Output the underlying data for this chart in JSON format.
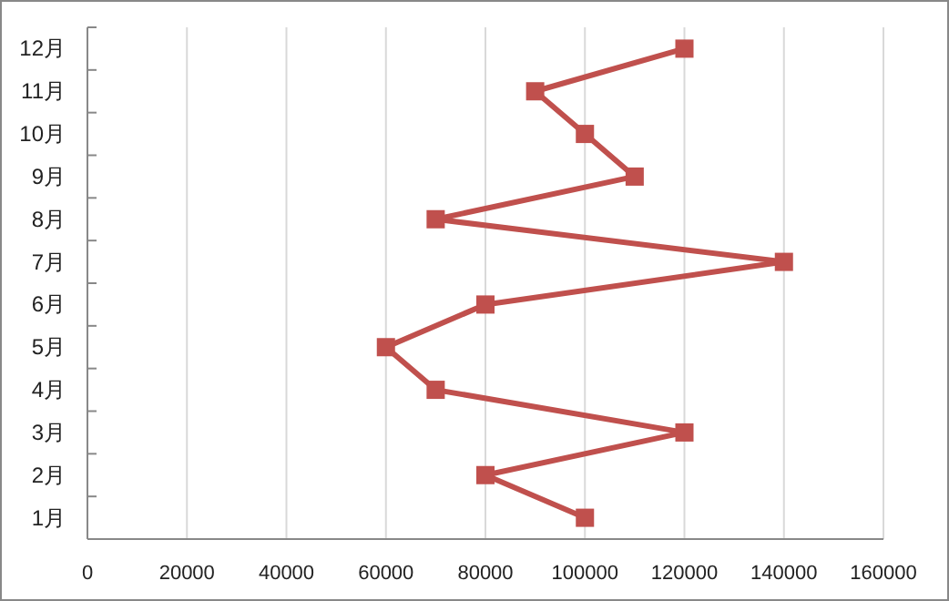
{
  "chart_data": {
    "type": "line",
    "orientation": "horizontal",
    "categories": [
      "12月",
      "11月",
      "10月",
      "9月",
      "8月",
      "7月",
      "6月",
      "5月",
      "4月",
      "3月",
      "2月",
      "1月"
    ],
    "series": [
      {
        "color": "#c0504d",
        "values": [
          120000,
          90000,
          100000,
          110000,
          70000,
          140000,
          80000,
          60000,
          70000,
          120000,
          80000,
          100000
        ]
      }
    ],
    "xlim": [
      0,
      160000
    ],
    "xticks": [
      0,
      20000,
      40000,
      60000,
      80000,
      100000,
      120000,
      140000,
      160000
    ],
    "grid": "x",
    "marker": "square",
    "line_style": "solid"
  }
}
